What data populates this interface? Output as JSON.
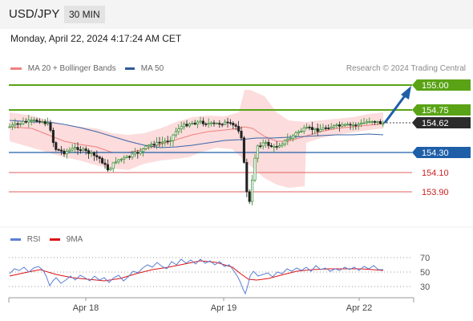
{
  "header": {
    "symbol": "USD/JPY",
    "timeframe": "30 MIN"
  },
  "datetime": "Monday, April 22, 2024 4:17:24 AM CET",
  "legend": [
    {
      "label": "MA 20 + Bollinger Bands",
      "color": "#f08080"
    },
    {
      "label": "MA 50",
      "color": "#2f5a96"
    }
  ],
  "credit": "Research © 2024 Trading Central",
  "colors": {
    "support": "#1f5fa8",
    "resistance": "#5aa316",
    "pivot": "#e06060",
    "up": "#2e8b2e",
    "down": "#222222",
    "rsi": "#5b7fd4",
    "rsi_ma": "#d11"
  },
  "price_levels": [
    {
      "value": "155.00",
      "kind": "target"
    },
    {
      "value": "154.75",
      "kind": "resistance"
    },
    {
      "value": "154.62",
      "kind": "current"
    },
    {
      "value": "154.30",
      "kind": "support"
    },
    {
      "value": "154.10",
      "kind": "pivot"
    },
    {
      "value": "153.90",
      "kind": "pivot"
    }
  ],
  "rsi_panel": {
    "legend": [
      {
        "label": "RSI",
        "color": "#5b7fd4"
      },
      {
        "label": "9MA",
        "color": "#d11"
      }
    ],
    "levels": [
      "70",
      "50",
      "30"
    ]
  },
  "x_axis": {
    "labels": [
      "Apr 18",
      "Apr 19",
      "Apr 22"
    ]
  }
}
